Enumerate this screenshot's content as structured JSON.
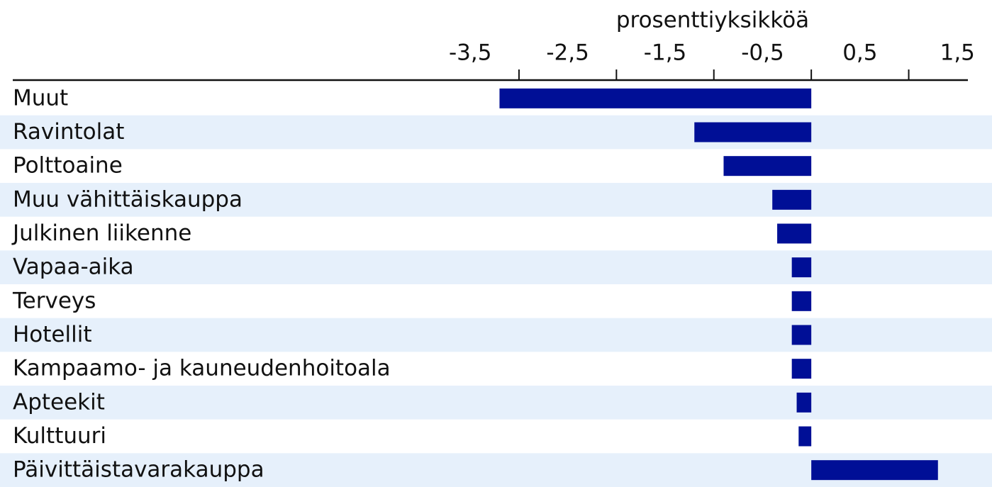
{
  "chart_data": {
    "type": "hbar",
    "x_label": "prosenttiyksikköä",
    "categories": [
      "Muut",
      "Ravintolat",
      "Polttoaine",
      "Muu vähittäiskauppa",
      "Julkinen liikenne",
      "Vapaa-aika",
      "Terveys",
      "Hotellit",
      "Kampaamo- ja kauneudenhoitoala",
      "Apteekit",
      "Kulttuuri",
      "Päivittäistavarakauppa"
    ],
    "values": [
      -3.2,
      -1.2,
      -0.9,
      -0.4,
      -0.35,
      -0.2,
      -0.2,
      -0.2,
      -0.2,
      -0.15,
      -0.13,
      1.3
    ],
    "color": "#000f96",
    "band_color": "#e6f0fb",
    "xlim": [
      -3.8,
      1.6
    ],
    "xticks": [
      {
        "value": -3.5,
        "label": "-3,5"
      },
      {
        "value": -2.5,
        "label": "-2,5"
      },
      {
        "value": -1.5,
        "label": "-1,5"
      },
      {
        "value": -0.5,
        "label": "-0,5"
      },
      {
        "value": 0.5,
        "label": "0,5"
      },
      {
        "value": 1.5,
        "label": "1,5"
      }
    ],
    "xminorticks": [
      -3,
      -2,
      -1,
      0,
      1
    ]
  }
}
